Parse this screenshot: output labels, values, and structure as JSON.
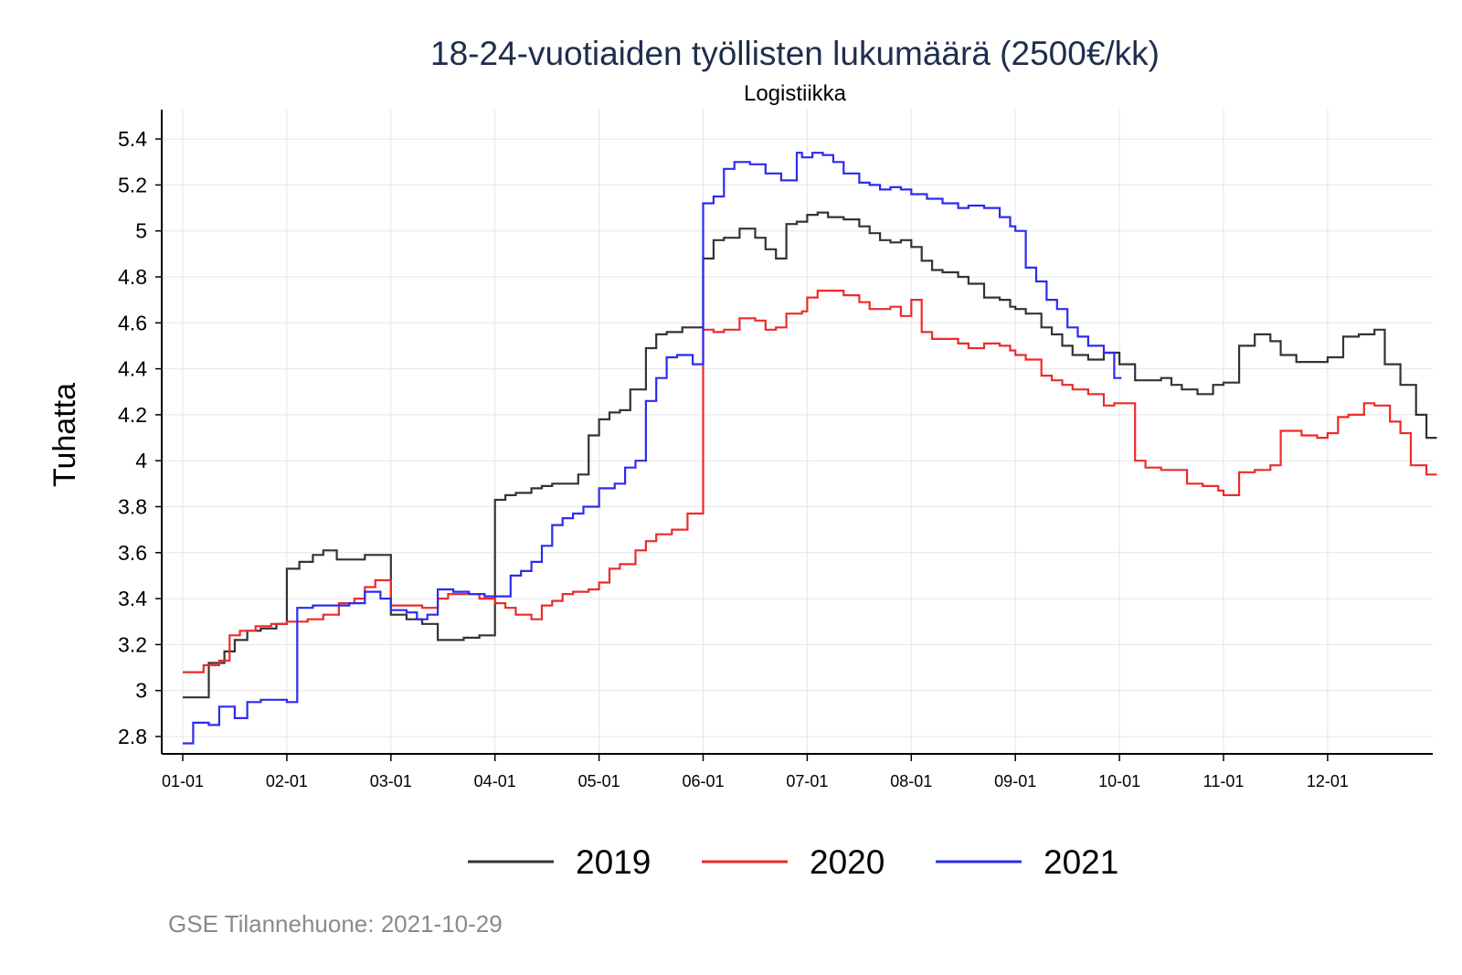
{
  "chart_data": {
    "type": "line",
    "title": "18-24-vuotiaiden työllisten lukumäärä (2500€/kk)",
    "subtitle": "Logistiikka",
    "ylabel": "Tuhatta",
    "xlabel": "",
    "ylim": [
      2.72,
      5.49
    ],
    "y_ticks": [
      2.8,
      3.0,
      3.2,
      3.4,
      3.6,
      3.8,
      4.0,
      4.2,
      4.4,
      4.6,
      4.8,
      5.0,
      5.2,
      5.4
    ],
    "y_tick_labels": [
      "2.8",
      "3",
      "3.2",
      "3.4",
      "3.6",
      "3.8",
      "4",
      "4.2",
      "4.4",
      "4.6",
      "4.8",
      "5",
      "5.2",
      "5.4"
    ],
    "x_unit": "month (1 = Jan 1)",
    "xlim": [
      0.8,
      13.2
    ],
    "x_ticks": [
      1,
      2,
      3,
      4,
      5,
      6,
      7,
      8,
      9,
      10,
      11,
      12
    ],
    "x_tick_labels": [
      "01-01",
      "02-01",
      "03-01",
      "04-01",
      "05-01",
      "06-01",
      "07-01",
      "08-01",
      "09-01",
      "10-01",
      "11-01",
      "12-01"
    ],
    "grid": true,
    "legend_position": "bottom",
    "colors": {
      "2019": "#333333",
      "2020": "#ee2a2a",
      "2021": "#2b2bef",
      "title": "#1f2d4d"
    },
    "series": [
      {
        "name": "2019",
        "color": "#333333",
        "x": [
          1.0,
          1.25,
          1.4,
          1.5,
          1.62,
          1.75,
          1.9,
          2.0,
          2.12,
          2.25,
          2.35,
          2.48,
          2.6,
          2.75,
          2.85,
          3.0,
          3.15,
          3.3,
          3.45,
          3.55,
          3.7,
          3.85,
          3.95,
          4.0,
          4.1,
          4.2,
          4.35,
          4.45,
          4.55,
          4.65,
          4.8,
          4.9,
          5.0,
          5.1,
          5.2,
          5.3,
          5.45,
          5.55,
          5.65,
          5.8,
          5.95,
          6.0,
          6.1,
          6.2,
          6.35,
          6.5,
          6.6,
          6.7,
          6.8,
          6.9,
          7.0,
          7.1,
          7.2,
          7.35,
          7.5,
          7.6,
          7.7,
          7.8,
          7.9,
          8.0,
          8.1,
          8.2,
          8.3,
          8.45,
          8.55,
          8.7,
          8.85,
          8.95,
          9.0,
          9.1,
          9.25,
          9.35,
          9.45,
          9.55,
          9.7,
          9.85,
          9.95,
          10.0,
          10.15,
          10.25,
          10.4,
          10.5,
          10.6,
          10.75,
          10.9,
          11.0,
          11.15,
          11.3,
          11.45,
          11.55,
          11.7,
          11.85,
          12.0,
          12.15,
          12.3,
          12.45,
          12.55,
          12.7,
          12.85,
          12.95
        ],
        "values": [
          2.97,
          3.12,
          3.17,
          3.22,
          3.26,
          3.27,
          3.29,
          3.53,
          3.56,
          3.59,
          3.61,
          3.57,
          3.57,
          3.59,
          3.59,
          3.33,
          3.31,
          3.29,
          3.22,
          3.22,
          3.23,
          3.24,
          3.24,
          3.83,
          3.85,
          3.86,
          3.88,
          3.89,
          3.9,
          3.9,
          3.94,
          4.11,
          4.18,
          4.21,
          4.22,
          4.31,
          4.49,
          4.55,
          4.56,
          4.58,
          4.58,
          4.88,
          4.96,
          4.97,
          5.01,
          4.97,
          4.92,
          4.88,
          5.03,
          5.04,
          5.07,
          5.08,
          5.06,
          5.05,
          5.02,
          4.99,
          4.96,
          4.95,
          4.96,
          4.93,
          4.87,
          4.83,
          4.82,
          4.8,
          4.77,
          4.71,
          4.7,
          4.67,
          4.66,
          4.64,
          4.58,
          4.55,
          4.5,
          4.46,
          4.44,
          4.47,
          4.47,
          4.42,
          4.35,
          4.35,
          4.36,
          4.33,
          4.31,
          4.29,
          4.33,
          4.34,
          4.5,
          4.55,
          4.52,
          4.46,
          4.43,
          4.43,
          4.45,
          4.54,
          4.55,
          4.57,
          4.42,
          4.33,
          4.2,
          4.1
        ]
      },
      {
        "name": "2020",
        "color": "#ee2a2a",
        "x": [
          1.0,
          1.2,
          1.35,
          1.45,
          1.55,
          1.7,
          1.85,
          2.0,
          2.2,
          2.35,
          2.5,
          2.65,
          2.75,
          2.85,
          3.0,
          3.15,
          3.3,
          3.45,
          3.55,
          3.7,
          3.85,
          4.0,
          4.1,
          4.2,
          4.35,
          4.45,
          4.55,
          4.65,
          4.75,
          4.9,
          5.0,
          5.1,
          5.2,
          5.35,
          5.45,
          5.55,
          5.7,
          5.85,
          6.0,
          6.1,
          6.2,
          6.35,
          6.5,
          6.6,
          6.7,
          6.8,
          6.95,
          7.0,
          7.1,
          7.2,
          7.35,
          7.5,
          7.6,
          7.7,
          7.8,
          7.9,
          8.0,
          8.1,
          8.2,
          8.3,
          8.45,
          8.55,
          8.7,
          8.85,
          8.95,
          9.0,
          9.1,
          9.25,
          9.35,
          9.45,
          9.55,
          9.7,
          9.85,
          9.95,
          10.0,
          10.15,
          10.25,
          10.4,
          10.5,
          10.65,
          10.8,
          10.95,
          11.0,
          11.15,
          11.3,
          11.45,
          11.55,
          11.75,
          11.9,
          12.0,
          12.1,
          12.2,
          12.35,
          12.45,
          12.6,
          12.7,
          12.8,
          12.95
        ],
        "values": [
          3.08,
          3.11,
          3.13,
          3.24,
          3.26,
          3.28,
          3.29,
          3.3,
          3.31,
          3.33,
          3.38,
          3.4,
          3.45,
          3.48,
          3.37,
          3.37,
          3.36,
          3.4,
          3.42,
          3.42,
          3.4,
          3.38,
          3.36,
          3.33,
          3.31,
          3.37,
          3.39,
          3.42,
          3.43,
          3.44,
          3.47,
          3.53,
          3.55,
          3.61,
          3.65,
          3.68,
          3.7,
          3.77,
          4.57,
          4.56,
          4.57,
          4.62,
          4.61,
          4.57,
          4.58,
          4.64,
          4.65,
          4.71,
          4.74,
          4.74,
          4.72,
          4.69,
          4.66,
          4.66,
          4.67,
          4.63,
          4.7,
          4.56,
          4.53,
          4.53,
          4.51,
          4.49,
          4.51,
          4.5,
          4.48,
          4.46,
          4.44,
          4.37,
          4.35,
          4.33,
          4.31,
          4.29,
          4.24,
          4.25,
          4.25,
          4.0,
          3.97,
          3.96,
          3.96,
          3.9,
          3.89,
          3.87,
          3.85,
          3.95,
          3.96,
          3.98,
          4.13,
          4.11,
          4.1,
          4.12,
          4.19,
          4.2,
          4.25,
          4.24,
          4.17,
          4.12,
          3.98,
          3.94
        ]
      },
      {
        "name": "2021",
        "color": "#2b2bef",
        "x": [
          1.0,
          1.1,
          1.25,
          1.35,
          1.5,
          1.62,
          1.75,
          1.9,
          2.0,
          2.1,
          2.25,
          2.45,
          2.6,
          2.75,
          2.9,
          3.0,
          3.15,
          3.25,
          3.35,
          3.45,
          3.6,
          3.75,
          3.9,
          4.0,
          4.15,
          4.25,
          4.35,
          4.45,
          4.55,
          4.65,
          4.75,
          4.85,
          5.0,
          5.15,
          5.25,
          5.35,
          5.45,
          5.55,
          5.65,
          5.75,
          5.9,
          6.0,
          6.1,
          6.2,
          6.3,
          6.45,
          6.6,
          6.75,
          6.9,
          6.95,
          7.05,
          7.15,
          7.25,
          7.35,
          7.5,
          7.6,
          7.7,
          7.8,
          7.9,
          8.0,
          8.15,
          8.3,
          8.45,
          8.55,
          8.7,
          8.85,
          8.95,
          9.0,
          9.1,
          9.2,
          9.3,
          9.4,
          9.5,
          9.6,
          9.7,
          9.85,
          9.95,
          10.0
        ],
        "values": [
          2.77,
          2.86,
          2.85,
          2.93,
          2.88,
          2.95,
          2.96,
          2.96,
          2.95,
          3.36,
          3.37,
          3.37,
          3.38,
          3.43,
          3.4,
          3.35,
          3.34,
          3.31,
          3.33,
          3.44,
          3.43,
          3.42,
          3.41,
          3.41,
          3.5,
          3.52,
          3.56,
          3.63,
          3.72,
          3.75,
          3.77,
          3.8,
          3.88,
          3.9,
          3.97,
          4.0,
          4.26,
          4.36,
          4.45,
          4.46,
          4.42,
          5.12,
          5.15,
          5.27,
          5.3,
          5.29,
          5.25,
          5.22,
          5.34,
          5.32,
          5.34,
          5.33,
          5.3,
          5.25,
          5.21,
          5.2,
          5.18,
          5.19,
          5.18,
          5.16,
          5.14,
          5.12,
          5.1,
          5.11,
          5.1,
          5.06,
          5.02,
          5.0,
          4.84,
          4.78,
          4.7,
          4.66,
          4.58,
          4.54,
          4.5,
          4.47,
          4.36,
          4.36
        ]
      }
    ],
    "legend": [
      "2019",
      "2020",
      "2021"
    ],
    "source": "GSE Tilannehuone: 2021-10-29"
  }
}
